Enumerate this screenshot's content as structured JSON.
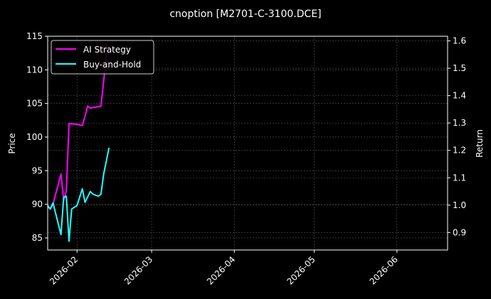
{
  "chart_data": {
    "type": "line",
    "title": "cnoption [M2701-C-3100.DCE]",
    "xlabel": "",
    "ylabel": "Price",
    "ylabel_right": "Return",
    "xlim": [
      "2026-01-21",
      "2026-06-20"
    ],
    "ylim": [
      83.2,
      115.0
    ],
    "ylim_right": [
      0.836,
      1.617
    ],
    "x_ticks": [
      "2026-02",
      "2026-03",
      "2026-04",
      "2026-05",
      "2026-06"
    ],
    "y_ticks": [
      85,
      90,
      95,
      100,
      105,
      110,
      115
    ],
    "y_ticks_right": [
      "0.9",
      "1.0",
      "1.1",
      "1.2",
      "1.3",
      "1.4",
      "1.5",
      "1.6"
    ],
    "grid": true,
    "legend_position": "upper left",
    "series": [
      {
        "name": "AI Strategy",
        "color": "#ff00ff",
        "axis": "left",
        "x": [
          "2026-01-21",
          "2026-01-22",
          "2026-01-23",
          "2026-01-26",
          "2026-01-27",
          "2026-01-28",
          "2026-01-29",
          "2026-02-01",
          "2026-02-03",
          "2026-02-04",
          "2026-02-05",
          "2026-02-06",
          "2026-02-10",
          "2026-02-12",
          "2026-02-12"
        ],
        "values": [
          89.6,
          89.3,
          90.0,
          94.5,
          90.6,
          92.0,
          102.0,
          101.9,
          101.7,
          103.1,
          104.6,
          104.3,
          104.6,
          112.0,
          114.0
        ]
      },
      {
        "name": "Buy-and-Hold",
        "color": "#22ffff",
        "axis": "left",
        "x": [
          "2026-01-21",
          "2026-01-22",
          "2026-01-23",
          "2026-01-26",
          "2026-01-27",
          "2026-01-28",
          "2026-01-29",
          "2026-01-30",
          "2026-02-01",
          "2026-02-03",
          "2026-02-04",
          "2026-02-06",
          "2026-02-07",
          "2026-02-09",
          "2026-02-10",
          "2026-02-11",
          "2026-02-13"
        ],
        "values": [
          89.8,
          89.3,
          90.2,
          85.5,
          91.0,
          91.2,
          84.5,
          89.3,
          89.8,
          92.3,
          90.3,
          91.9,
          91.5,
          91.2,
          91.5,
          94.5,
          98.4
        ]
      }
    ]
  },
  "legend": {
    "items": [
      {
        "label": "AI Strategy",
        "color": "#ff00ff"
      },
      {
        "label": "Buy-and-Hold",
        "color": "#22ffff"
      }
    ]
  },
  "colors": {
    "background": "#000000",
    "frame": "#ffffff",
    "grid": "#555555",
    "ai_strategy": "#ff00ff",
    "buy_and_hold": "#22ffff"
  }
}
